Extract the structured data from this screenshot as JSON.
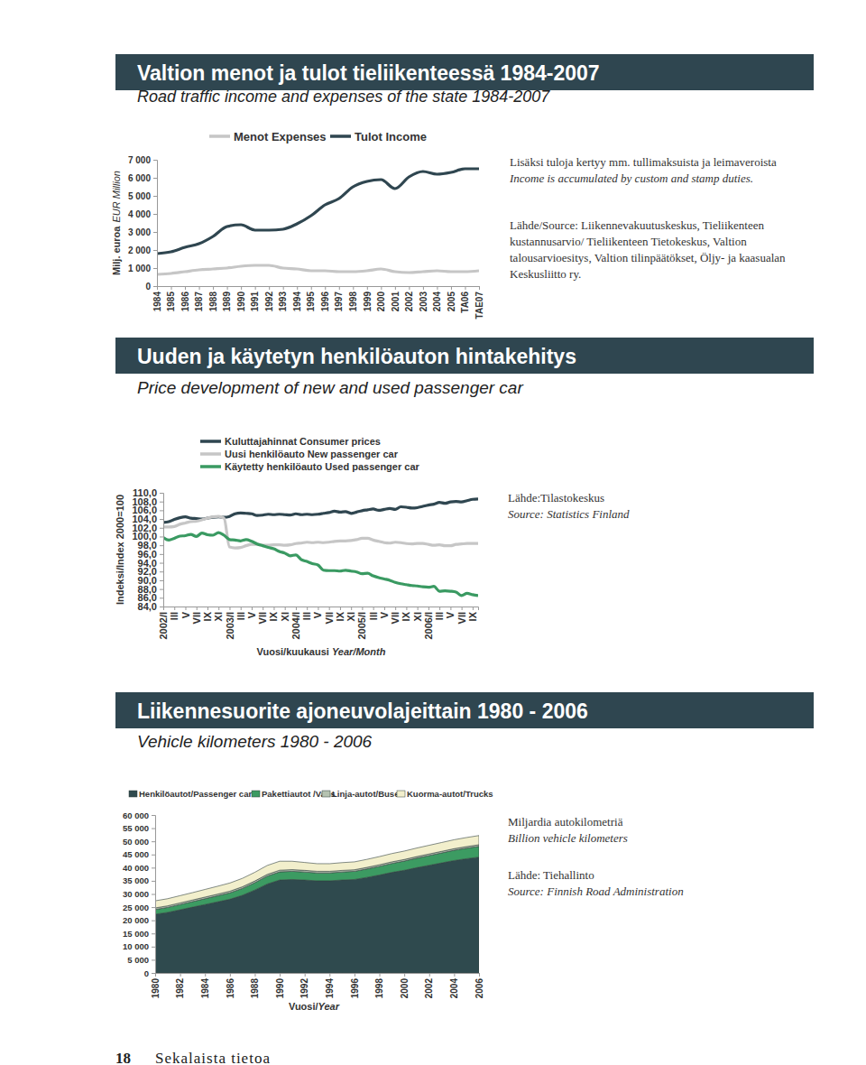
{
  "chart_data": [
    {
      "type": "line",
      "title": "Valtion menot ja tulot tieliikenteessä 1984-2007",
      "subtitle": "Road traffic income and expenses of the state 1984-2007",
      "ylabel": "Milj. euroa",
      "ylabel_en": "EUR Million",
      "legend": "top",
      "categories": [
        "1984",
        "1985",
        "1986",
        "1987",
        "1988",
        "1989",
        "1990",
        "1991",
        "1992",
        "1993",
        "1994",
        "1995",
        "1996",
        "1997",
        "1998",
        "1999",
        "2000",
        "2001",
        "2002",
        "2003",
        "2004",
        "2005",
        "TA06",
        "TAE07"
      ],
      "series": [
        {
          "name": "Menot Expenses",
          "color": "#c6c6c6",
          "values": [
            650,
            700,
            800,
            900,
            950,
            1000,
            1100,
            1150,
            1150,
            1000,
            950,
            850,
            850,
            800,
            800,
            850,
            950,
            800,
            750,
            800,
            850,
            800,
            800,
            850
          ]
        },
        {
          "name": "Tulot Income",
          "color": "#2f4650",
          "values": [
            1800,
            1900,
            2150,
            2350,
            2750,
            3300,
            3400,
            3100,
            3100,
            3150,
            3450,
            3900,
            4500,
            4850,
            5500,
            5800,
            5900,
            5400,
            6050,
            6350,
            6200,
            6300,
            6500,
            6500
          ]
        }
      ],
      "ylim": [
        0,
        7000
      ],
      "yticks": [
        0,
        {
          "value": 1000,
          "label": "1 000"
        },
        {
          "value": 2000,
          "label": "2 000"
        },
        {
          "value": 3000,
          "label": "3 000"
        },
        {
          "value": 4000,
          "label": "4 000"
        },
        {
          "value": 5000,
          "label": "5 000"
        },
        {
          "value": 6000,
          "label": "6 000"
        },
        {
          "value": 7000,
          "label": "7 000"
        }
      ],
      "notes": [
        {
          "lines": [
            "Lisäksi tuloja kertyy mm. tullimaksuista ja leimaveroista"
          ],
          "lines_en": [
            "Income is accumulated by custom and stamp duties."
          ]
        },
        {
          "lines": [
            "Lähde/Source: Liikennevakuutuskeskus, Tieliikenteen",
            "kustannusarvio/ Tieliikenteen Tietokeskus, Valtion",
            "talousarvioesitys, Valtion tilinpäätökset, Öljy- ja kaasualan",
            "Keskusliitto ry."
          ]
        }
      ]
    },
    {
      "type": "line",
      "title": "Uuden ja käytetyn henkilöauton hintakehitys",
      "subtitle": "Price development of new and used passenger car",
      "ylabel": "Indeksi/Index 2000=100",
      "xlabel": "Vuosi/kuukausi ",
      "xlabel_en": "Year/Month",
      "legend": "top",
      "categories": [
        "2002/I",
        null,
        "III",
        null,
        "V",
        null,
        "VII",
        null,
        "IX",
        null,
        "XI",
        null,
        "2003/I",
        null,
        "III",
        null,
        "V",
        null,
        "VII",
        null,
        "IX",
        null,
        "XI",
        null,
        "2004/I",
        null,
        "III",
        null,
        "V",
        null,
        "VII",
        null,
        "IX",
        null,
        "XI",
        null,
        "2005/I",
        null,
        "III",
        null,
        "V",
        null,
        "VII",
        null,
        "IX",
        null,
        "XI",
        null,
        "2006/I",
        null,
        "III",
        null,
        "V",
        null,
        "VII",
        null,
        "IX",
        null
      ],
      "series": [
        {
          "name": "Kuluttajahinnat Consumer prices",
          "color": "#2f4650",
          "values": [
            103.2,
            103.4,
            103.9,
            104.3,
            104.5,
            104.2,
            104.1,
            104.0,
            104.2,
            104.4,
            104.5,
            104.4,
            104.6,
            105.2,
            105.4,
            105.3,
            105.2,
            104.8,
            104.9,
            105.1,
            105.0,
            105.1,
            105.0,
            104.9,
            105.2,
            105.0,
            105.1,
            105.0,
            105.1,
            105.3,
            105.5,
            105.8,
            105.6,
            105.7,
            105.3,
            105.6,
            105.9,
            106.1,
            106.3,
            106.0,
            106.2,
            106.4,
            106.2,
            106.8,
            106.7,
            106.5,
            106.6,
            106.9,
            107.2,
            107.4,
            107.8,
            107.6,
            107.9,
            108.0,
            107.9,
            108.2,
            108.5,
            108.6
          ]
        },
        {
          "name": "Uusi henkilöauto New passenger car",
          "color": "#c6c6c6",
          "values": [
            102.2,
            102.2,
            102.3,
            102.8,
            103.1,
            103.4,
            103.5,
            103.8,
            104.2,
            104.5,
            104.6,
            104.2,
            97.6,
            97.4,
            97.5,
            97.9,
            98.2,
            98.2,
            98.0,
            98.0,
            98.1,
            98.1,
            98.0,
            98.1,
            98.4,
            98.5,
            98.7,
            98.6,
            98.7,
            98.6,
            98.7,
            98.9,
            99.0,
            99.0,
            99.1,
            99.3,
            99.6,
            99.6,
            99.2,
            98.9,
            98.6,
            98.5,
            98.7,
            98.6,
            98.4,
            98.3,
            98.4,
            98.4,
            98.2,
            98.0,
            98.1,
            97.9,
            97.9,
            98.2,
            98.3,
            98.4,
            98.4,
            98.4
          ]
        },
        {
          "name": "Käytetty henkilöauto Used passenger car",
          "color": "#3a9a62",
          "values": [
            99.8,
            99.2,
            99.6,
            100.1,
            100.2,
            100.5,
            100.0,
            100.8,
            100.4,
            100.3,
            100.9,
            100.3,
            99.3,
            99.2,
            99.0,
            99.3,
            98.9,
            98.3,
            97.9,
            97.5,
            97.2,
            96.6,
            96.2,
            95.6,
            95.8,
            94.7,
            94.3,
            93.8,
            93.5,
            92.3,
            92.2,
            92.2,
            92.1,
            92.3,
            92.1,
            91.9,
            91.5,
            91.6,
            91.0,
            90.6,
            90.3,
            90.0,
            89.5,
            89.2,
            89.0,
            88.8,
            88.7,
            88.5,
            88.4,
            88.6,
            87.5,
            87.6,
            87.5,
            87.3,
            86.5,
            87.0,
            86.7,
            86.5
          ]
        }
      ],
      "ylim": [
        84,
        110
      ],
      "yticks": [
        {
          "value": 84,
          "label": "84,0"
        },
        {
          "value": 86,
          "label": "86,0"
        },
        {
          "value": 88,
          "label": "88,0"
        },
        {
          "value": 90,
          "label": "90,0"
        },
        {
          "value": 92,
          "label": "92,0"
        },
        {
          "value": 94,
          "label": "94,0"
        },
        {
          "value": 96,
          "label": "96,0"
        },
        {
          "value": 98,
          "label": "98,0"
        },
        {
          "value": 100,
          "label": "100,0"
        },
        {
          "value": 102,
          "label": "102,0"
        },
        {
          "value": 104,
          "label": "104,0"
        },
        {
          "value": 106,
          "label": "106,0"
        },
        {
          "value": 108,
          "label": "108,0"
        },
        {
          "value": 110,
          "label": "110,0"
        }
      ],
      "notes": [
        {
          "lines": [
            "Lähde:Tilastokeskus"
          ],
          "lines_en": [
            "Source: Statistics Finland"
          ]
        }
      ]
    },
    {
      "type": "area",
      "stacked": true,
      "title": "Liikennesuorite ajoneuvolajeittain 1980 - 2006",
      "subtitle": "Vehicle kilometers 1980 - 2006",
      "xlabel": "Vuosi/",
      "xlabel_en": "Year",
      "legend": "top",
      "x": [
        1980,
        1981,
        1982,
        1983,
        1984,
        1985,
        1986,
        1987,
        1988,
        1989,
        1990,
        1991,
        1992,
        1993,
        1994,
        1995,
        1996,
        1997,
        1998,
        1999,
        2000,
        2001,
        2002,
        2003,
        2004,
        2005,
        2006
      ],
      "series": [
        {
          "name": "Henkilöautot/Passenger cars",
          "color": "#2f4a4e",
          "values": [
            22300,
            23000,
            24000,
            25000,
            26000,
            27000,
            28000,
            29500,
            31500,
            33800,
            35300,
            35500,
            35300,
            35000,
            35000,
            35300,
            35500,
            36300,
            37200,
            38200,
            39000,
            40000,
            40900,
            41800,
            42700,
            43400,
            44000
          ]
        },
        {
          "name": "Pakettiautot /Vans",
          "color": "#3c9b62",
          "values": [
            1800,
            1900,
            2000,
            2100,
            2200,
            2300,
            2450,
            2600,
            2800,
            3000,
            3100,
            3100,
            3050,
            3000,
            3000,
            3050,
            3100,
            3200,
            3300,
            3400,
            3500,
            3600,
            3700,
            3800,
            3900,
            4000,
            4100
          ]
        },
        {
          "name": "Linja-autot/Buses",
          "color": "#b5c2b0",
          "values": [
            600,
            600,
            610,
            610,
            620,
            620,
            620,
            630,
            630,
            640,
            640,
            630,
            620,
            610,
            600,
            600,
            600,
            600,
            600,
            600,
            600,
            600,
            600,
            600,
            600,
            600,
            600
          ]
        },
        {
          "name": "Kuorma-autot/Trucks",
          "color": "#f2efcc",
          "values": [
            2700,
            2700,
            2750,
            2800,
            2900,
            3000,
            3100,
            3200,
            3300,
            3400,
            3400,
            3200,
            3000,
            2900,
            2900,
            2950,
            3000,
            3050,
            3100,
            3150,
            3200,
            3250,
            3300,
            3350,
            3400,
            3450,
            3500
          ]
        }
      ],
      "xlim": [
        1980,
        2006
      ],
      "xticks": [
        1980,
        1982,
        1984,
        1986,
        1988,
        1990,
        1992,
        1994,
        1996,
        1998,
        2000,
        2002,
        2004,
        2006
      ],
      "ylim": [
        0,
        60000
      ],
      "yticks": [
        0,
        {
          "value": 5000,
          "label": "5 000"
        },
        {
          "value": 10000,
          "label": "10 000"
        },
        {
          "value": 15000,
          "label": "15 000"
        },
        {
          "value": 20000,
          "label": "20 000"
        },
        {
          "value": 25000,
          "label": "25 000"
        },
        {
          "value": 30000,
          "label": "30 000"
        },
        {
          "value": 35000,
          "label": "35 000"
        },
        {
          "value": 40000,
          "label": "40 000"
        },
        {
          "value": 45000,
          "label": "45 000"
        },
        {
          "value": 50000,
          "label": "50 000"
        },
        {
          "value": 55000,
          "label": "55 000"
        },
        {
          "value": 60000,
          "label": "60 000"
        }
      ],
      "notes": [
        {
          "lines": [
            "Miljardia autokilometriä"
          ],
          "lines_en": [
            "Billion vehicle kilometers"
          ]
        },
        {
          "lines": [
            "Lähde: Tiehallinto"
          ],
          "lines_en": [
            "Source: Finnish Road Administration"
          ]
        }
      ]
    }
  ],
  "footer": {
    "page_number": 18,
    "section": "Sekalaista tietoa"
  }
}
